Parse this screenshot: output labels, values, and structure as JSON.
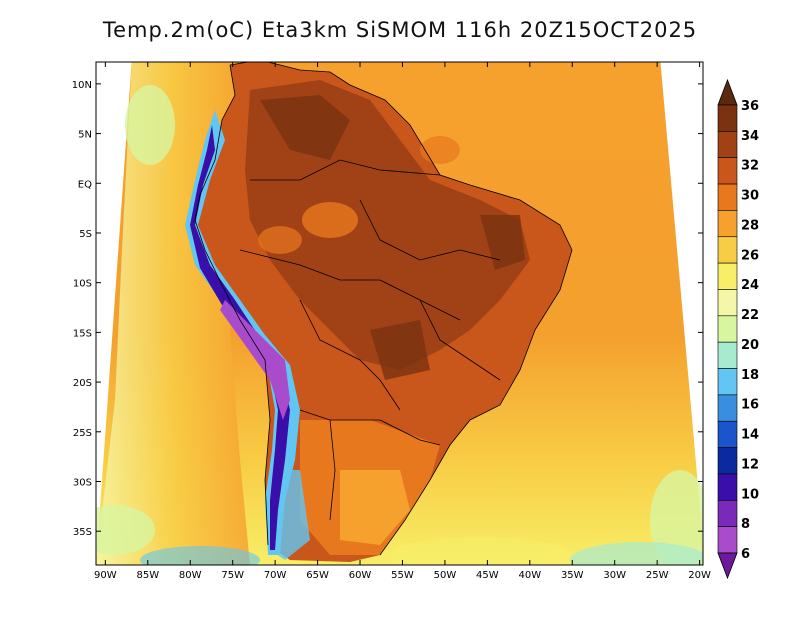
{
  "title": "Temp.2m(oC) Eta3km SiSMOM 116h 20Z15OCT2025",
  "lat_labels": [
    "10N",
    "5N",
    "EQ",
    "5S",
    "10S",
    "15S",
    "20S",
    "25S",
    "30S",
    "35S"
  ],
  "lat_values": [
    10,
    5,
    0,
    -5,
    -10,
    -15,
    -20,
    -25,
    -30,
    -35
  ],
  "lon_labels": [
    "90W",
    "85W",
    "80W",
    "75W",
    "70W",
    "65W",
    "60W",
    "55W",
    "50W",
    "45W",
    "40W",
    "35W",
    "30W",
    "25W",
    "20W"
  ],
  "lon_values": [
    -90,
    -85,
    -80,
    -75,
    -70,
    -65,
    -60,
    -55,
    -50,
    -45,
    -40,
    -35,
    -30,
    -25,
    -20
  ],
  "colorbar": {
    "labels": [
      "36",
      "34",
      "32",
      "30",
      "28",
      "26",
      "24",
      "22",
      "20",
      "18",
      "16",
      "14",
      "12",
      "10",
      "8",
      "6"
    ],
    "colors_top_to_bottom": [
      "#5a2a0e",
      "#7a3210",
      "#a04216",
      "#c9561a",
      "#e8781e",
      "#f6a12e",
      "#f8cd45",
      "#f8ee68",
      "#f6f6a8",
      "#d8f5a0",
      "#a6ead0",
      "#62c6f2",
      "#3a8ee0",
      "#1a55cc",
      "#0a2aa0",
      "#3a0ea8",
      "#7a2ab8",
      "#a84ccc",
      "#6a1a9a"
    ]
  },
  "colors": {
    "ocean_warm": "#f6a12e",
    "land_hot": "#c9561a",
    "land_hotter": "#a04216",
    "land_very_hot": "#7a3210",
    "andes_cold": "#5a1aa8",
    "andes_cool": "#3a8ee0",
    "coast_cool": "#d8f5a0",
    "pale": "#f6f6a8"
  }
}
